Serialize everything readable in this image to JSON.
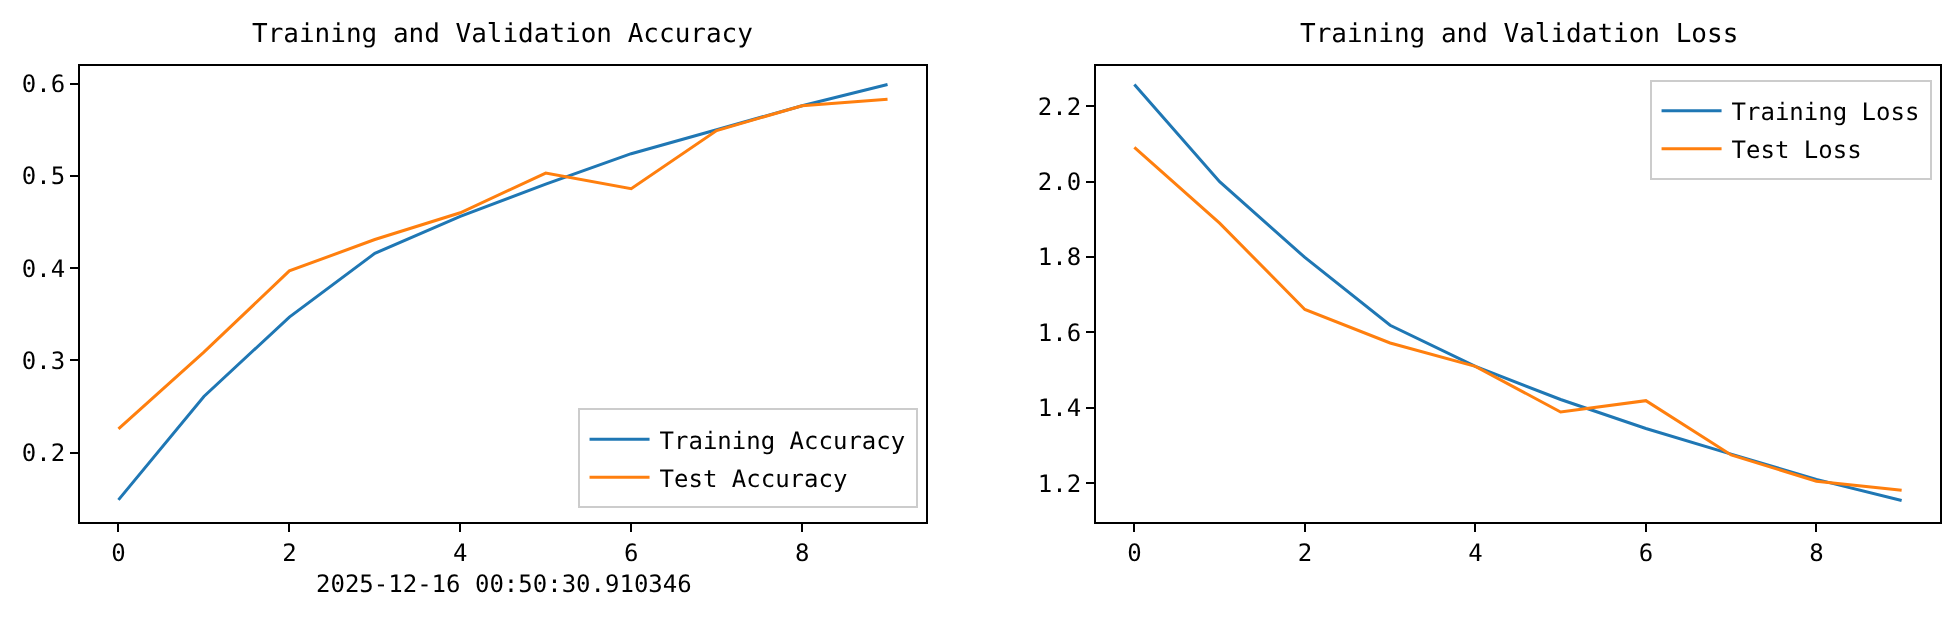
{
  "chart_data": [
    {
      "type": "line",
      "title": "Training and Validation Accuracy",
      "x": [
        0,
        1,
        2,
        3,
        4,
        5,
        6,
        7,
        8,
        9
      ],
      "xlim": [
        -0.45,
        9.45
      ],
      "xticks": [
        0,
        2,
        4,
        6,
        8
      ],
      "ylim": [
        0.125,
        0.619
      ],
      "yticks": [
        0.2,
        0.3,
        0.4,
        0.5,
        0.6
      ],
      "legend": "bottom right",
      "annotations": [
        "2025-12-16 00:50:30.910346"
      ],
      "series": [
        {
          "name": "Training Accuracy",
          "color": "#1f77b4",
          "values": [
            0.149,
            0.261,
            0.347,
            0.416,
            0.456,
            0.491,
            0.524,
            0.55,
            0.576,
            0.599
          ]
        },
        {
          "name": "Test Accuracy",
          "color": "#ff7f0e",
          "values": [
            0.226,
            0.309,
            0.397,
            0.431,
            0.46,
            0.503,
            0.486,
            0.549,
            0.576,
            0.583
          ]
        }
      ]
    },
    {
      "type": "line",
      "title": "Training and Validation Loss",
      "x": [
        0,
        1,
        2,
        3,
        4,
        5,
        6,
        7,
        8,
        9
      ],
      "xlim": [
        -0.45,
        9.45
      ],
      "xticks": [
        0,
        2,
        4,
        6,
        8
      ],
      "ylim": [
        1.097,
        2.307
      ],
      "yticks": [
        {
          "value": 1.2,
          "label": "1.2"
        },
        {
          "value": 1.4,
          "label": "1.4"
        },
        {
          "value": 1.6,
          "label": "1.6"
        },
        {
          "value": 1.8,
          "label": "1.8"
        },
        {
          "value": 2.0,
          "label": "2.0"
        },
        {
          "value": 2.2,
          "label": "2.2"
        }
      ],
      "legend": "top right",
      "series": [
        {
          "name": "Training Loss",
          "color": "#1f77b4",
          "values": [
            2.258,
            2.0,
            1.799,
            1.619,
            1.51,
            1.422,
            1.345,
            1.277,
            1.21,
            1.154
          ]
        },
        {
          "name": "Test Loss",
          "color": "#ff7f0e",
          "values": [
            2.091,
            1.89,
            1.661,
            1.572,
            1.51,
            1.389,
            1.419,
            1.275,
            1.205,
            1.181
          ]
        }
      ]
    }
  ]
}
